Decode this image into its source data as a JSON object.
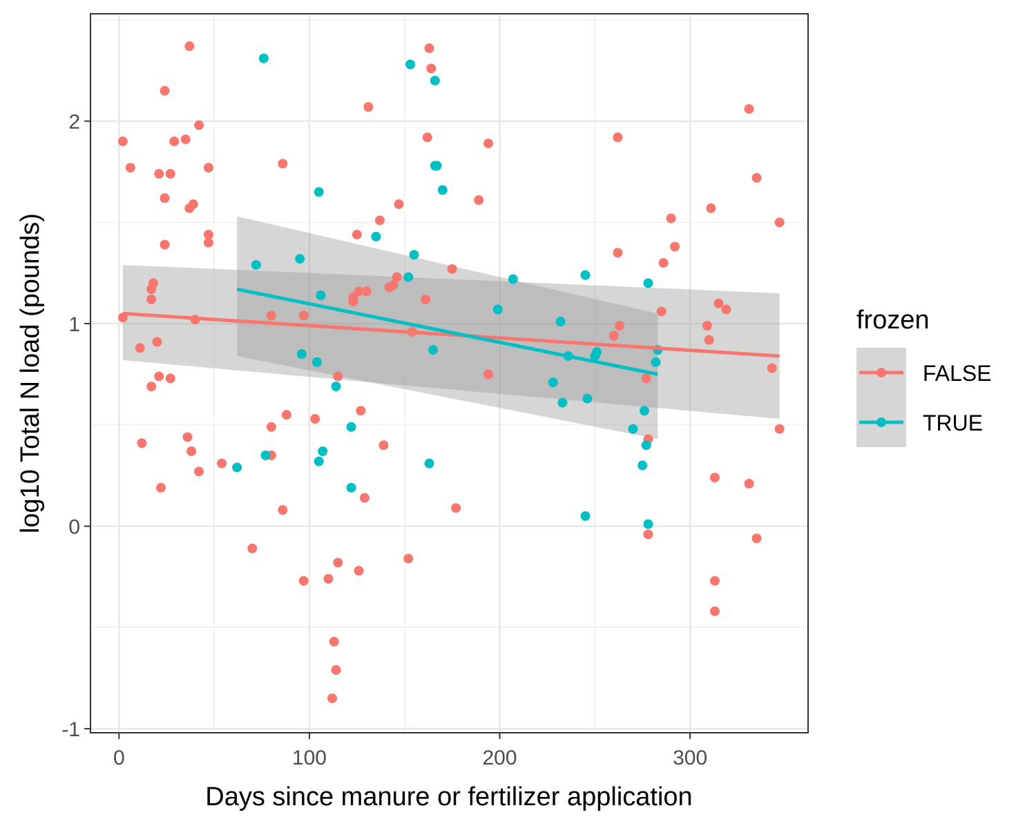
{
  "chart_data": {
    "type": "scatter",
    "title": "",
    "xlabel": "Days since manure or fertilizer application",
    "ylabel": "log10 Total N load (pounds)",
    "xlim": [
      -15,
      362
    ],
    "ylim": [
      -1.02,
      2.53
    ],
    "x_ticks": [
      0,
      100,
      200,
      300
    ],
    "y_ticks": [
      -1,
      0,
      1,
      2
    ],
    "x_tick_labels": [
      "0",
      "100",
      "200",
      "300"
    ],
    "y_tick_labels": [
      "-1",
      "0",
      "1",
      "2"
    ],
    "grid": true,
    "legend": {
      "title": "frozen",
      "position": "right"
    },
    "series": [
      {
        "name": "FALSE",
        "color": "#F8766D",
        "points": [
          [
            2,
            1.9
          ],
          [
            2,
            1.03
          ],
          [
            6,
            1.77
          ],
          [
            11,
            0.88
          ],
          [
            12,
            0.41
          ],
          [
            17,
            1.12
          ],
          [
            17,
            0.69
          ],
          [
            17,
            1.17
          ],
          [
            18,
            1.2
          ],
          [
            20,
            0.91
          ],
          [
            21,
            1.74
          ],
          [
            21,
            0.74
          ],
          [
            22,
            0.19
          ],
          [
            24,
            2.15
          ],
          [
            24,
            1.62
          ],
          [
            24,
            1.39
          ],
          [
            27,
            1.74
          ],
          [
            27,
            0.73
          ],
          [
            29,
            1.9
          ],
          [
            35,
            1.91
          ],
          [
            36,
            0.44
          ],
          [
            37,
            2.37
          ],
          [
            37,
            1.57
          ],
          [
            38,
            0.37
          ],
          [
            39,
            1.59
          ],
          [
            40,
            1.02
          ],
          [
            42,
            1.98
          ],
          [
            42,
            0.27
          ],
          [
            47,
            1.77
          ],
          [
            47,
            1.44
          ],
          [
            47,
            1.4
          ],
          [
            54,
            0.31
          ],
          [
            70,
            -0.11
          ],
          [
            80,
            1.04
          ],
          [
            80,
            0.49
          ],
          [
            80,
            0.35
          ],
          [
            86,
            1.79
          ],
          [
            86,
            0.08
          ],
          [
            88,
            0.55
          ],
          [
            97,
            -0.27
          ],
          [
            97,
            1.04
          ],
          [
            103,
            0.53
          ],
          [
            104,
            0.81
          ],
          [
            110,
            -0.26
          ],
          [
            112,
            -0.85
          ],
          [
            113,
            -0.57
          ],
          [
            114,
            -0.71
          ],
          [
            115,
            -0.18
          ],
          [
            115,
            0.74
          ],
          [
            123,
            1.13
          ],
          [
            123,
            1.11
          ],
          [
            125,
            1.44
          ],
          [
            126,
            1.16
          ],
          [
            126,
            -0.22
          ],
          [
            127,
            0.57
          ],
          [
            129,
            0.14
          ],
          [
            130,
            1.16
          ],
          [
            131,
            2.07
          ],
          [
            137,
            1.51
          ],
          [
            139,
            0.4
          ],
          [
            142,
            1.18
          ],
          [
            144,
            1.19
          ],
          [
            146,
            1.23
          ],
          [
            147,
            1.59
          ],
          [
            152,
            -0.16
          ],
          [
            154,
            0.96
          ],
          [
            161,
            1.12
          ],
          [
            162,
            1.92
          ],
          [
            163,
            2.36
          ],
          [
            164,
            2.26
          ],
          [
            175,
            1.27
          ],
          [
            177,
            0.09
          ],
          [
            189,
            1.61
          ],
          [
            194,
            0.75
          ],
          [
            194,
            1.89
          ],
          [
            260,
            0.94
          ],
          [
            262,
            1.35
          ],
          [
            262,
            1.92
          ],
          [
            263,
            0.99
          ],
          [
            277,
            0.73
          ],
          [
            278,
            -0.04
          ],
          [
            278,
            0.43
          ],
          [
            285,
            1.06
          ],
          [
            286,
            1.3
          ],
          [
            290,
            1.52
          ],
          [
            292,
            1.38
          ],
          [
            309,
            0.99
          ],
          [
            310,
            0.92
          ],
          [
            311,
            1.57
          ],
          [
            313,
            0.24
          ],
          [
            313,
            -0.27
          ],
          [
            313,
            -0.42
          ],
          [
            315,
            1.1
          ],
          [
            319,
            1.07
          ],
          [
            331,
            2.06
          ],
          [
            331,
            0.21
          ],
          [
            335,
            -0.06
          ],
          [
            335,
            1.72
          ],
          [
            343,
            0.78
          ],
          [
            347,
            1.5
          ],
          [
            347,
            0.48
          ]
        ],
        "trend": {
          "x": [
            2,
            347
          ],
          "y": [
            1.05,
            0.84
          ]
        },
        "band_x": [
          2,
          347
        ],
        "band_upper": [
          1.29,
          1.15
        ],
        "band_lower": [
          0.82,
          0.53
        ]
      },
      {
        "name": "TRUE",
        "color": "#00BFC4",
        "points": [
          [
            62,
            0.29
          ],
          [
            72,
            1.29
          ],
          [
            76,
            2.31
          ],
          [
            77,
            0.35
          ],
          [
            95,
            1.32
          ],
          [
            96,
            0.85
          ],
          [
            104,
            0.81
          ],
          [
            105,
            1.65
          ],
          [
            105,
            0.32
          ],
          [
            106,
            1.14
          ],
          [
            107,
            0.37
          ],
          [
            114,
            0.69
          ],
          [
            122,
            0.49
          ],
          [
            122,
            0.19
          ],
          [
            135,
            1.43
          ],
          [
            152,
            1.23
          ],
          [
            153,
            2.28
          ],
          [
            155,
            1.34
          ],
          [
            163,
            0.31
          ],
          [
            165,
            0.87
          ],
          [
            166,
            1.78
          ],
          [
            166,
            2.2
          ],
          [
            167,
            1.78
          ],
          [
            170,
            1.66
          ],
          [
            199,
            1.07
          ],
          [
            207,
            1.22
          ],
          [
            228,
            0.71
          ],
          [
            232,
            1.01
          ],
          [
            233,
            0.61
          ],
          [
            236,
            0.84
          ],
          [
            245,
            1.24
          ],
          [
            245,
            0.05
          ],
          [
            246,
            0.63
          ],
          [
            250,
            0.84
          ],
          [
            251,
            0.86
          ],
          [
            270,
            0.48
          ],
          [
            275,
            0.3
          ],
          [
            276,
            0.57
          ],
          [
            277,
            0.4
          ],
          [
            278,
            0.01
          ],
          [
            278,
            1.2
          ],
          [
            282,
            0.81
          ],
          [
            283,
            0.87
          ]
        ],
        "trend": {
          "x": [
            62,
            283
          ],
          "y": [
            1.17,
            0.75
          ]
        },
        "band_x": [
          62,
          283
        ],
        "band_upper": [
          1.53,
          1.05
        ],
        "band_lower": [
          0.84,
          0.43
        ]
      }
    ]
  }
}
